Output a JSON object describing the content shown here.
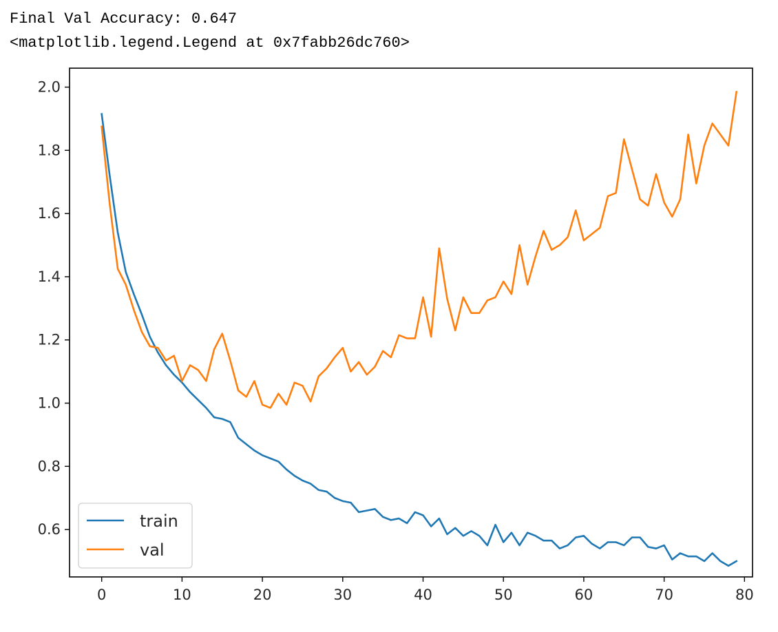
{
  "output": {
    "accuracy_text": "Final Val Accuracy: 0.647",
    "legend_repr": "<matplotlib.legend.Legend at 0x7fabb26dc760>"
  },
  "chart_data": {
    "type": "line",
    "title": "",
    "xlabel": "",
    "ylabel": "",
    "xlim": [
      -4,
      81
    ],
    "ylim": [
      0.45,
      2.06
    ],
    "xticks": [
      0,
      10,
      20,
      30,
      40,
      50,
      60,
      70,
      80
    ],
    "xtick_labels": [
      "0",
      "10",
      "20",
      "30",
      "40",
      "50",
      "60",
      "70",
      "80"
    ],
    "yticks": [
      0.6,
      0.8,
      1.0,
      1.2,
      1.4,
      1.6,
      1.8,
      2.0
    ],
    "ytick_labels": [
      "0.6",
      "0.8",
      "1.0",
      "1.2",
      "1.4",
      "1.6",
      "1.8",
      "2.0"
    ],
    "grid": false,
    "legend_position": "lower-left",
    "x": [
      0,
      1,
      2,
      3,
      4,
      5,
      6,
      7,
      8,
      9,
      10,
      11,
      12,
      13,
      14,
      15,
      16,
      17,
      18,
      19,
      20,
      21,
      22,
      23,
      24,
      25,
      26,
      27,
      28,
      29,
      30,
      31,
      32,
      33,
      34,
      35,
      36,
      37,
      38,
      39,
      40,
      41,
      42,
      43,
      44,
      45,
      46,
      47,
      48,
      49,
      50,
      51,
      52,
      53,
      54,
      55,
      56,
      57,
      58,
      59,
      60,
      61,
      62,
      63,
      64,
      65,
      66,
      67,
      68,
      69,
      70,
      71,
      72,
      73,
      74,
      75,
      76,
      77,
      78,
      79
    ],
    "series": [
      {
        "name": "train",
        "color": "#1f77b4",
        "values": [
          1.915,
          1.72,
          1.54,
          1.415,
          1.345,
          1.28,
          1.21,
          1.16,
          1.12,
          1.09,
          1.065,
          1.035,
          1.01,
          0.985,
          0.955,
          0.95,
          0.94,
          0.89,
          0.87,
          0.85,
          0.835,
          0.825,
          0.815,
          0.79,
          0.77,
          0.755,
          0.745,
          0.725,
          0.72,
          0.7,
          0.69,
          0.685,
          0.655,
          0.66,
          0.665,
          0.64,
          0.63,
          0.635,
          0.62,
          0.655,
          0.645,
          0.61,
          0.635,
          0.585,
          0.605,
          0.58,
          0.595,
          0.58,
          0.55,
          0.615,
          0.56,
          0.59,
          0.55,
          0.59,
          0.58,
          0.565,
          0.565,
          0.54,
          0.55,
          0.575,
          0.58,
          0.555,
          0.54,
          0.56,
          0.56,
          0.55,
          0.575,
          0.575,
          0.545,
          0.54,
          0.55,
          0.505,
          0.525,
          0.515,
          0.515,
          0.5,
          0.525,
          0.5,
          0.485,
          0.5
        ]
      },
      {
        "name": "val",
        "color": "#ff7f0e",
        "values": [
          1.875,
          1.63,
          1.425,
          1.375,
          1.295,
          1.225,
          1.18,
          1.175,
          1.135,
          1.15,
          1.07,
          1.12,
          1.105,
          1.07,
          1.17,
          1.22,
          1.135,
          1.04,
          1.02,
          1.07,
          0.995,
          0.985,
          1.03,
          0.995,
          1.065,
          1.055,
          1.005,
          1.085,
          1.11,
          1.145,
          1.175,
          1.1,
          1.13,
          1.09,
          1.115,
          1.165,
          1.145,
          1.215,
          1.205,
          1.205,
          1.335,
          1.21,
          1.49,
          1.33,
          1.23,
          1.335,
          1.285,
          1.285,
          1.325,
          1.335,
          1.385,
          1.345,
          1.5,
          1.375,
          1.465,
          1.545,
          1.485,
          1.5,
          1.525,
          1.61,
          1.515,
          1.535,
          1.555,
          1.655,
          1.665,
          1.835,
          1.74,
          1.645,
          1.625,
          1.725,
          1.635,
          1.59,
          1.645,
          1.85,
          1.695,
          1.815,
          1.885,
          1.85,
          1.815,
          1.985
        ]
      }
    ]
  }
}
